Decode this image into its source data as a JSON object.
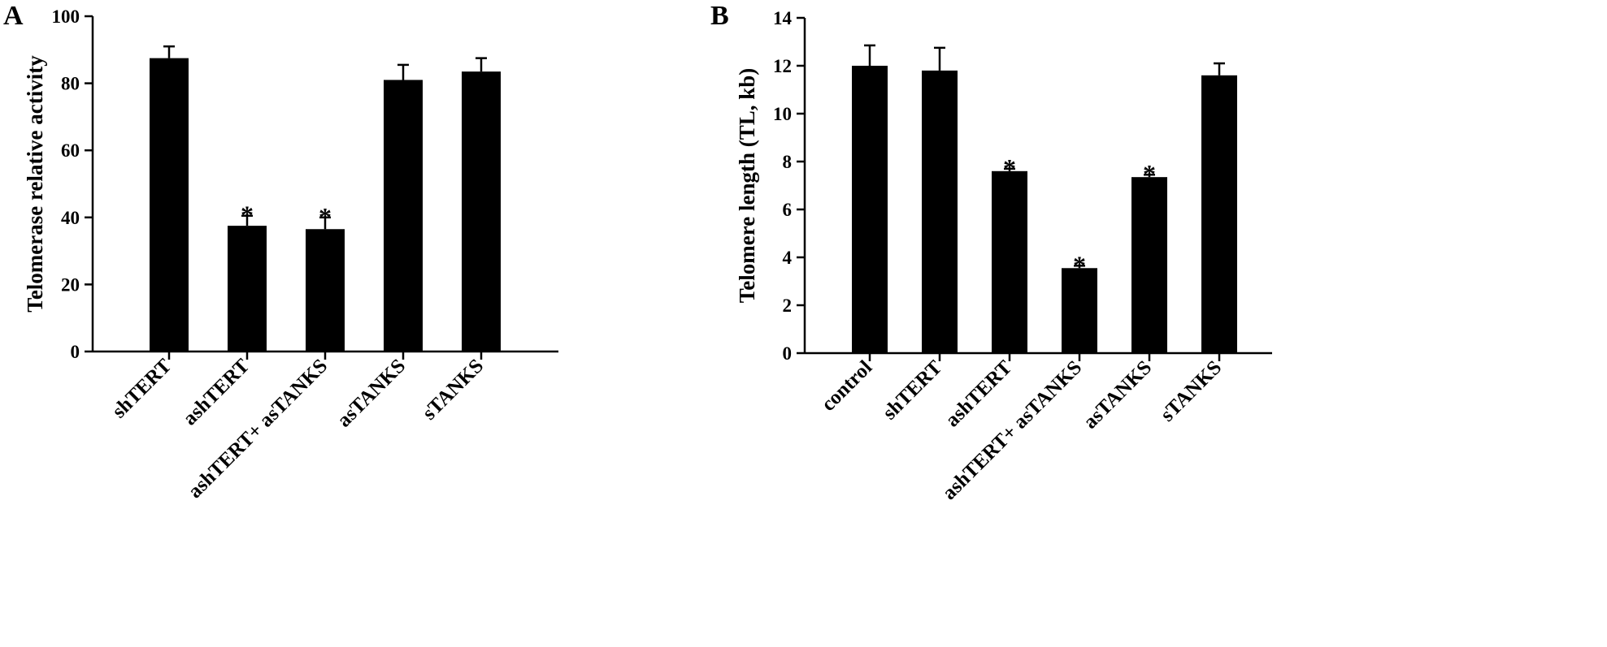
{
  "chart_data": [
    {
      "type": "bar",
      "panel_label": "A",
      "title": "",
      "xlabel": "",
      "ylabel": "Telomerase relative activity",
      "ylim": [
        0,
        100
      ],
      "yticks": [
        0,
        20,
        40,
        60,
        80,
        100
      ],
      "categories": [
        "shTERT",
        "ashTERT",
        "ashTERT+ asTANKS",
        "asTANKS",
        "sTANKS"
      ],
      "values": [
        87.5,
        37.5,
        36.5,
        81,
        83.5
      ],
      "errors": [
        3.5,
        3,
        3.5,
        4.5,
        4
      ],
      "significance": [
        "",
        "*",
        "*",
        "",
        ""
      ],
      "bar_color": "#000000",
      "grid": false
    },
    {
      "type": "bar",
      "panel_label": "B",
      "title": "",
      "xlabel": "",
      "ylabel": "Telomere length (TL, kb)",
      "ylim": [
        0,
        14
      ],
      "yticks": [
        0,
        2,
        4,
        6,
        8,
        10,
        12,
        14
      ],
      "categories": [
        "control",
        "shTERT",
        "ashTERT",
        "ashTERT+ asTANKS",
        "asTANKS",
        "sTANKS"
      ],
      "values": [
        12,
        11.8,
        7.6,
        3.55,
        7.35,
        11.6
      ],
      "errors": [
        0.85,
        0.95,
        0.1,
        0.1,
        0.1,
        0.5
      ],
      "significance": [
        "",
        "",
        "*",
        "*",
        "*",
        ""
      ],
      "bar_color": "#000000",
      "grid": false
    }
  ]
}
